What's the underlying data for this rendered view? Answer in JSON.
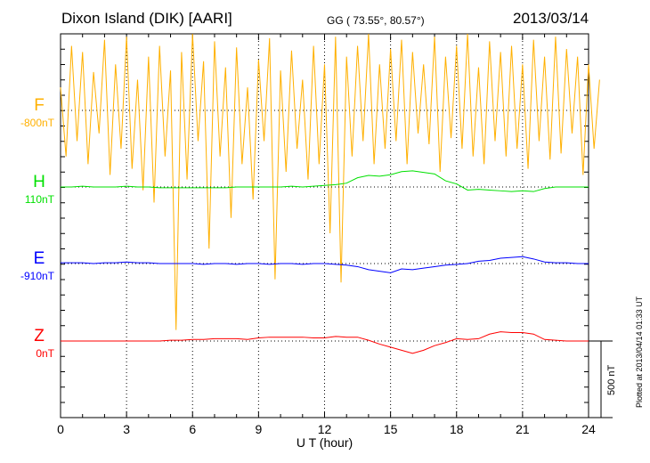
{
  "header": {
    "title": "Dixon Island (DIK)  [AARI]",
    "coords": "GG ( 73.55°,  80.57°)",
    "date": "2013/03/14"
  },
  "footer": {
    "plotted": "Plotted at 2013/04/14 01:33 UT",
    "scale_label": "500 nT"
  },
  "chart_data": {
    "type": "line",
    "xlabel": "U T (hour)",
    "xlim": [
      0,
      24
    ],
    "xticks": [
      0,
      3,
      6,
      9,
      12,
      15,
      18,
      21,
      24
    ],
    "xtick_labels": [
      "0",
      "3",
      "6",
      "9",
      "12",
      "15",
      "18",
      "21",
      "24"
    ],
    "y_units_per_tick_nT": 100,
    "scale_bar_nT": 500,
    "grid": "dotted vertical every 3h, dotted baseline per component",
    "series": [
      {
        "name": "F",
        "baseline_label": "-800nT",
        "color": "#ffb000",
        "dt_hours": 0.25,
        "values": [
          150,
          -300,
          420,
          -200,
          380,
          -350,
          250,
          -150,
          460,
          -420,
          300,
          -250,
          480,
          -380,
          200,
          -520,
          350,
          -600,
          420,
          -300,
          260,
          -1430,
          380,
          -450,
          500,
          -200,
          320,
          -900,
          450,
          -300,
          280,
          -700,
          410,
          -350,
          150,
          -580,
          330,
          -200,
          470,
          -1100,
          260,
          -400,
          390,
          -250,
          200,
          -450,
          420,
          -350,
          300,
          -800,
          480,
          -1120,
          350,
          -300,
          420,
          -200,
          500,
          -350,
          300,
          -250,
          400,
          -200,
          460,
          -350,
          380,
          -150,
          300,
          -220,
          480,
          -400,
          350,
          -180,
          420,
          -250,
          500,
          -300,
          280,
          -350,
          450,
          -200,
          380,
          -300,
          420,
          -250,
          300,
          -380,
          460,
          -200,
          350,
          -320,
          480,
          -280,
          400,
          -150,
          350,
          -420,
          300,
          -250,
          200
        ]
      },
      {
        "name": "H",
        "baseline_label": "110nT",
        "color": "#00e000",
        "dt_hours": 0.5,
        "values": [
          0,
          0,
          5,
          0,
          0,
          0,
          5,
          0,
          0,
          -5,
          -5,
          -5,
          -5,
          -5,
          -5,
          -5,
          0,
          0,
          0,
          0,
          0,
          5,
          0,
          5,
          10,
          15,
          25,
          60,
          75,
          70,
          80,
          100,
          105,
          95,
          85,
          40,
          20,
          -20,
          -15,
          -20,
          -25,
          -30,
          -25,
          -30,
          -10,
          0,
          0,
          0,
          0
        ]
      },
      {
        "name": "E",
        "baseline_label": "-910nT",
        "color": "#0000ff",
        "dt_hours": 0.5,
        "values": [
          5,
          5,
          5,
          0,
          5,
          5,
          10,
          5,
          5,
          0,
          0,
          0,
          0,
          -5,
          0,
          0,
          -5,
          0,
          0,
          -5,
          0,
          0,
          -5,
          0,
          0,
          -5,
          -10,
          -20,
          -40,
          -50,
          -60,
          -35,
          -40,
          -30,
          -20,
          -10,
          -5,
          0,
          15,
          20,
          35,
          40,
          45,
          30,
          10,
          5,
          5,
          0,
          0
        ]
      },
      {
        "name": "Z",
        "baseline_label": "0nT",
        "color": "#ff0000",
        "dt_hours": 0.5,
        "values": [
          0,
          0,
          0,
          0,
          0,
          0,
          0,
          0,
          0,
          0,
          5,
          5,
          10,
          10,
          15,
          15,
          15,
          10,
          20,
          25,
          25,
          25,
          25,
          20,
          20,
          30,
          25,
          25,
          5,
          -20,
          -40,
          -60,
          -80,
          -60,
          -30,
          -10,
          15,
          10,
          15,
          45,
          60,
          55,
          55,
          45,
          10,
          5,
          0,
          0,
          0
        ]
      }
    ]
  }
}
